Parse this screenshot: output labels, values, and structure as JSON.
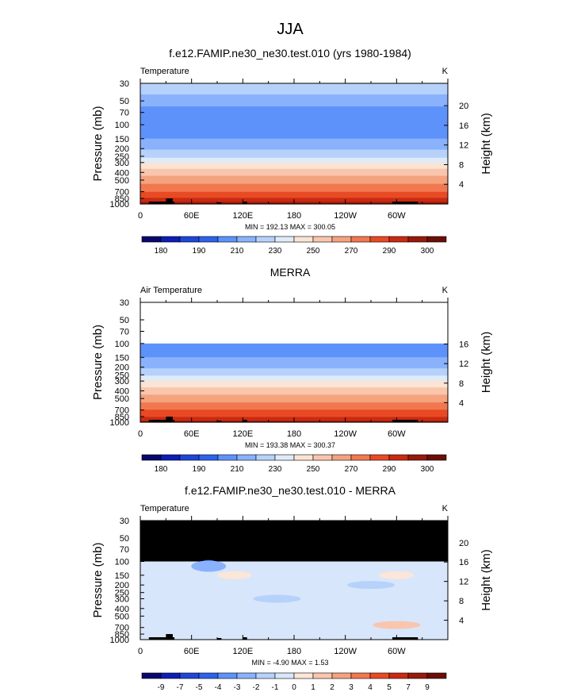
{
  "season_title": "JJA",
  "colors": {
    "temp_scale": [
      "#08086c",
      "#0d1db5",
      "#1e46d8",
      "#2c62ec",
      "#5e92fb",
      "#8ab2fc",
      "#b6d2fb",
      "#e0ebfa",
      "#fbe4d4",
      "#f9c6ad",
      "#f5a27f",
      "#f1784f",
      "#e84a24",
      "#c92a12",
      "#971a0b",
      "#6b0e07"
    ],
    "diff_scale": [
      "#08086c",
      "#0d1db5",
      "#1e46d8",
      "#2c62ec",
      "#5e92fb",
      "#8ab2fc",
      "#b6d2fb",
      "#d7e6fb",
      "#fce6d8",
      "#f9c6ad",
      "#f5a27f",
      "#f1784f",
      "#e84a24",
      "#c92a12",
      "#971a0b",
      "#6b0e07"
    ],
    "missing": "#000000"
  },
  "panels": [
    {
      "title": "f.e12.FAMIP.ne30_ne30.test.010 (yrs 1980-1984)",
      "left_label": "Temperature",
      "unit": "K",
      "stats": "MIN =  192.13   MAX =  300.05",
      "y_title": "Pressure  (mb)",
      "y2_title": "Height  (km)",
      "height_ticks": [
        "20",
        "16",
        "12",
        "8",
        "4"
      ],
      "colorbar_labels": [
        "180",
        "190",
        "210",
        "230",
        "250",
        "270",
        "290",
        "300"
      ]
    },
    {
      "title": "MERRA",
      "left_label": "Air Temperature",
      "unit": "K",
      "stats": "MIN =  193.38   MAX =  300.37",
      "y_title": "Pressure  (mb)",
      "y2_title": "Height  (km)",
      "height_ticks": [
        "16",
        "12",
        "8",
        "4"
      ],
      "colorbar_labels": [
        "180",
        "190",
        "210",
        "230",
        "250",
        "270",
        "290",
        "300"
      ]
    },
    {
      "title": "f.e12.FAMIP.ne30_ne30.test.010 - MERRA",
      "left_label": "Temperature",
      "unit": "K",
      "stats": "MIN =    -4.90   MAX =     1.53",
      "y_title": "Pressure  (mb)",
      "y2_title": "Height  (km)",
      "height_ticks": [
        "20",
        "16",
        "12",
        "8",
        "4"
      ],
      "colorbar_labels": [
        "-9",
        "-7",
        "-5",
        "-4",
        "-3",
        "-2",
        "-1",
        "0",
        "1",
        "2",
        "3",
        "4",
        "5",
        "7",
        "9"
      ]
    }
  ],
  "chart_data": [
    {
      "type": "heatmap",
      "title": "f.e12.FAMIP.ne30_ne30.test.010 (yrs 1980-1984)",
      "subtitle": "Temperature",
      "units": "K",
      "xlabel": "",
      "ylabel": "Pressure  (mb)",
      "y2label": "Height  (km)",
      "x_tick_labels": [
        "0",
        "60E",
        "120E",
        "180",
        "120W",
        "60W"
      ],
      "y_tick_labels": [
        "30",
        "50",
        "70",
        "100",
        "150",
        "200",
        "250",
        "300",
        "400",
        "500",
        "700",
        "850",
        "1000"
      ],
      "y2_tick_labels": [
        "20",
        "16",
        "12",
        "8",
        "4"
      ],
      "y_scale": "log",
      "ylim": [
        1000,
        30
      ],
      "xlim": [
        0,
        360
      ],
      "contour_levels": [
        180,
        185,
        190,
        200,
        210,
        220,
        230,
        240,
        250,
        260,
        270,
        280,
        290,
        295,
        300
      ],
      "min": 192.13,
      "max": 300.05,
      "bands": [
        {
          "p": 30,
          "value": 228
        },
        {
          "p": 50,
          "value": 215
        },
        {
          "p": 70,
          "value": 205
        },
        {
          "p": 100,
          "value": 202
        },
        {
          "p": 150,
          "value": 210
        },
        {
          "p": 200,
          "value": 218
        },
        {
          "p": 250,
          "value": 228
        },
        {
          "p": 300,
          "value": 240
        },
        {
          "p": 400,
          "value": 255
        },
        {
          "p": 500,
          "value": 265
        },
        {
          "p": 700,
          "value": 280
        },
        {
          "p": 850,
          "value": 290
        },
        {
          "p": 1000,
          "value": 297
        }
      ]
    },
    {
      "type": "heatmap",
      "title": "MERRA",
      "subtitle": "Air Temperature",
      "units": "K",
      "xlabel": "",
      "ylabel": "Pressure  (mb)",
      "y2label": "Height  (km)",
      "x_tick_labels": [
        "0",
        "60E",
        "120E",
        "180",
        "120W",
        "60W"
      ],
      "y_tick_labels": [
        "30",
        "50",
        "70",
        "100",
        "150",
        "200",
        "250",
        "300",
        "400",
        "500",
        "700",
        "850",
        "1000"
      ],
      "y2_tick_labels": [
        "16",
        "12",
        "8",
        "4"
      ],
      "y_scale": "log",
      "ylim": [
        1000,
        30
      ],
      "xlim": [
        0,
        360
      ],
      "contour_levels": [
        180,
        185,
        190,
        200,
        210,
        220,
        230,
        240,
        250,
        260,
        270,
        280,
        290,
        295,
        300
      ],
      "min": 193.38,
      "max": 300.37,
      "data_top_pressure": 100,
      "bands": [
        {
          "p": 100,
          "value": 200
        },
        {
          "p": 150,
          "value": 210
        },
        {
          "p": 200,
          "value": 218
        },
        {
          "p": 250,
          "value": 228
        },
        {
          "p": 300,
          "value": 240
        },
        {
          "p": 400,
          "value": 255
        },
        {
          "p": 500,
          "value": 265
        },
        {
          "p": 700,
          "value": 280
        },
        {
          "p": 850,
          "value": 290
        },
        {
          "p": 1000,
          "value": 297
        }
      ]
    },
    {
      "type": "heatmap",
      "title": "f.e12.FAMIP.ne30_ne30.test.010 - MERRA",
      "subtitle": "Temperature",
      "units": "K",
      "xlabel": "",
      "ylabel": "Pressure  (mb)",
      "y2label": "Height  (km)",
      "x_tick_labels": [
        "0",
        "60E",
        "120E",
        "180",
        "120W",
        "60W"
      ],
      "y_tick_labels": [
        "30",
        "50",
        "70",
        "100",
        "150",
        "200",
        "250",
        "300",
        "400",
        "500",
        "700",
        "850",
        "1000"
      ],
      "y2_tick_labels": [
        "20",
        "16",
        "12",
        "8",
        "4"
      ],
      "y_scale": "log",
      "ylim": [
        1000,
        30
      ],
      "xlim": [
        0,
        360
      ],
      "contour_levels": [
        -9,
        -7,
        -5,
        -4,
        -3,
        -2,
        -1,
        0,
        1,
        2,
        3,
        4,
        5,
        7,
        9
      ],
      "min": -4.9,
      "max": 1.53,
      "missing_above_pressure": 100,
      "background_value": -0.5,
      "features": [
        {
          "lon": 80,
          "p": 105,
          "value": -4.9
        },
        {
          "lon": 80,
          "p": 115,
          "value": -3
        },
        {
          "lon": 110,
          "p": 150,
          "value": 0.5
        },
        {
          "lon": 300,
          "p": 150,
          "value": 0.5
        },
        {
          "lon": 160,
          "p": 300,
          "value": -1.5
        },
        {
          "lon": 270,
          "p": 200,
          "value": -1.5
        },
        {
          "lon": 300,
          "p": 650,
          "value": 1.5
        }
      ]
    }
  ]
}
